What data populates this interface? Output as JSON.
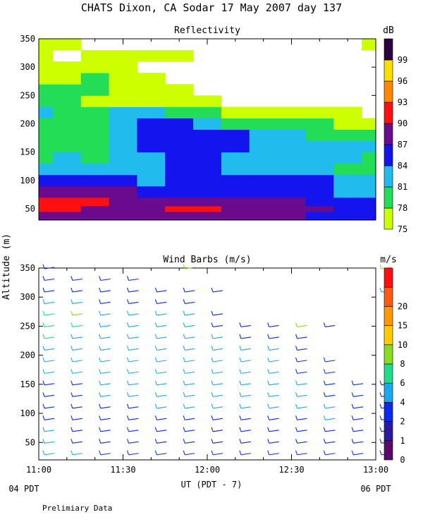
{
  "figure": {
    "title": "CHATS Dixon, CA  Sodar  17 May 2007  day 137",
    "shared_ylabel": "Altitude (m)",
    "xlabel": "UT  (PDT - 7)",
    "x_left_note": "04 PDT",
    "x_right_note": "06 PDT",
    "footer": "Prelimiary Data"
  },
  "chart_data": [
    {
      "type": "heatmap",
      "title": "Reflectivity",
      "ylabel": "Altitude (m)",
      "xlabel": "UT  (PDT - 7)",
      "x_ticks": [
        "11:00",
        "11:30",
        "12:00",
        "12:30",
        "13:00"
      ],
      "xlim_minutes_after_11UT": [
        0,
        120
      ],
      "ylim": [
        30,
        350
      ],
      "y_ticks": [
        50,
        100,
        150,
        200,
        250,
        300,
        350
      ],
      "colorbar": {
        "unit": "dB",
        "levels": [
          75,
          78,
          81,
          84,
          87,
          90,
          93,
          96,
          99
        ],
        "colors": [
          "#ccff00",
          "#22dd55",
          "#22bbee",
          "#1414ee",
          "#6a0a8c",
          "#ff1010",
          "#ff8800",
          "#ffdd00",
          "#2a0040"
        ]
      },
      "altitudes": [
        40,
        50,
        60,
        80,
        100,
        120,
        140,
        160,
        180,
        200,
        220,
        240,
        260,
        280,
        300,
        320,
        340
      ],
      "times_min": [
        0,
        10,
        20,
        30,
        40,
        50,
        60,
        70,
        80,
        90,
        100,
        110,
        120
      ],
      "values_dB": [
        [
          88,
          88,
          88,
          88,
          89,
          89,
          89,
          89,
          89,
          87,
          86,
          86,
          86
        ],
        [
          90,
          90,
          88,
          88,
          89,
          90,
          90,
          88,
          87,
          87,
          87,
          85,
          85
        ],
        [
          90,
          90,
          90,
          89,
          88,
          88,
          88,
          88,
          87,
          87,
          85,
          84,
          84
        ],
        [
          88,
          88,
          87,
          87,
          86,
          85,
          85,
          86,
          86,
          86,
          84,
          82,
          82
        ],
        [
          85,
          85,
          85,
          84,
          82,
          85,
          84,
          85,
          85,
          84,
          84,
          82,
          82
        ],
        [
          82,
          82,
          82,
          82,
          83,
          84,
          84,
          83,
          83,
          82,
          83,
          80,
          80
        ],
        [
          80,
          81,
          79,
          81,
          83,
          84,
          84,
          83,
          83,
          82,
          82,
          82,
          80
        ],
        [
          79,
          80,
          79,
          82,
          84,
          85,
          85,
          84,
          83,
          83,
          82,
          82,
          81
        ],
        [
          79,
          78,
          79,
          83,
          85,
          85,
          84,
          84,
          82,
          81,
          80,
          79,
          78
        ],
        [
          80,
          79,
          80,
          83,
          84,
          84,
          83,
          80,
          79,
          78,
          78,
          77,
          76
        ],
        [
          81,
          80,
          80,
          81,
          81,
          79,
          78,
          77,
          77,
          76,
          76,
          75,
          74
        ],
        [
          79,
          79,
          77,
          76,
          76,
          76,
          75,
          74,
          73,
          73,
          73,
          73,
          73
        ],
        [
          78,
          79,
          78,
          77,
          76,
          75,
          74,
          73,
          73,
          73,
          73,
          73,
          73
        ],
        [
          77,
          77,
          78,
          76,
          75,
          74,
          73,
          73,
          73,
          73,
          73,
          73,
          73
        ],
        [
          77,
          76,
          76,
          76,
          74,
          74,
          73,
          73,
          73,
          73,
          73,
          73,
          73
        ],
        [
          75,
          74,
          75,
          76,
          75,
          75,
          74,
          73,
          73,
          73,
          73,
          73,
          73
        ],
        [
          76,
          75,
          74,
          74,
          74,
          74,
          74,
          74,
          73,
          73,
          73,
          74,
          75
        ]
      ]
    },
    {
      "type": "scatter",
      "title": "Wind Barbs (m/s)",
      "ylabel": "Altitude (m)",
      "xlabel": "UT  (PDT - 7)",
      "x_ticks": [
        "11:00",
        "11:30",
        "12:00",
        "12:30",
        "13:00"
      ],
      "xlim_minutes_after_11UT": [
        0,
        120
      ],
      "ylim": [
        20,
        350
      ],
      "y_ticks": [
        50,
        100,
        150,
        200,
        250,
        300,
        350
      ],
      "colorbar": {
        "unit": "m/s",
        "levels": [
          0,
          1,
          2,
          4,
          6,
          8,
          10,
          15,
          20
        ],
        "colors": [
          "#5a0a6a",
          "#2a1aa0",
          "#0a2aee",
          "#1aa8ee",
          "#22dd88",
          "#88dd22",
          "#ffcc00",
          "#ff9900",
          "#ff5a10",
          "#ff1010"
        ]
      },
      "times_min": [
        0,
        10,
        20,
        30,
        40,
        50,
        60,
        70,
        80,
        90,
        100,
        110,
        120
      ],
      "altitudes": [
        30,
        50,
        70,
        90,
        110,
        130,
        150,
        170,
        190,
        210,
        230,
        250,
        270,
        290,
        310,
        330,
        350
      ],
      "speed_m_s": [
        [
          4,
          4,
          3,
          3,
          3,
          2,
          2,
          2,
          3,
          3,
          2,
          2,
          2
        ],
        [
          4,
          3,
          3,
          3,
          3,
          2,
          1,
          2,
          2,
          2,
          3,
          2,
          2
        ],
        [
          4,
          3,
          3,
          3,
          3,
          2,
          1,
          2,
          2,
          2,
          3,
          3,
          2
        ],
        [
          3,
          3,
          3,
          3,
          3,
          2,
          2,
          3,
          3,
          3,
          4,
          3,
          2
        ],
        [
          3,
          3,
          3,
          3,
          4,
          4,
          4,
          4,
          4,
          4,
          4,
          2,
          2
        ],
        [
          3,
          3,
          4,
          4,
          4,
          4,
          5,
          5,
          5,
          4,
          2,
          2,
          2
        ],
        [
          3,
          3,
          4,
          4,
          4,
          5,
          5,
          5,
          5,
          4,
          2,
          2,
          2
        ],
        [
          4,
          4,
          4,
          4,
          5,
          5,
          5,
          5,
          5,
          2,
          2,
          null,
          null
        ],
        [
          4,
          4,
          4,
          4,
          5,
          5,
          5,
          5,
          5,
          2,
          2,
          null,
          null
        ],
        [
          4,
          4,
          4,
          4,
          5,
          5,
          5,
          4,
          4,
          2,
          null,
          null,
          null
        ],
        [
          6,
          5,
          5,
          5,
          5,
          5,
          5,
          3,
          2,
          2,
          null,
          null,
          null
        ],
        [
          6,
          6,
          5,
          5,
          4,
          4,
          3,
          3,
          3,
          9,
          1,
          null,
          null
        ],
        [
          6,
          9,
          5,
          4,
          4,
          4,
          3,
          null,
          null,
          null,
          null,
          null,
          null
        ],
        [
          4,
          4,
          3,
          3,
          3,
          3,
          null,
          null,
          null,
          null,
          null,
          null,
          null
        ],
        [
          3,
          3,
          3,
          3,
          3,
          2,
          2,
          null,
          null,
          null,
          null,
          null,
          4
        ],
        [
          3,
          3,
          3,
          3,
          null,
          null,
          null,
          null,
          null,
          null,
          null,
          null,
          null
        ],
        [
          3,
          null,
          null,
          null,
          null,
          9,
          null,
          null,
          null,
          null,
          null,
          null,
          9
        ]
      ]
    }
  ]
}
